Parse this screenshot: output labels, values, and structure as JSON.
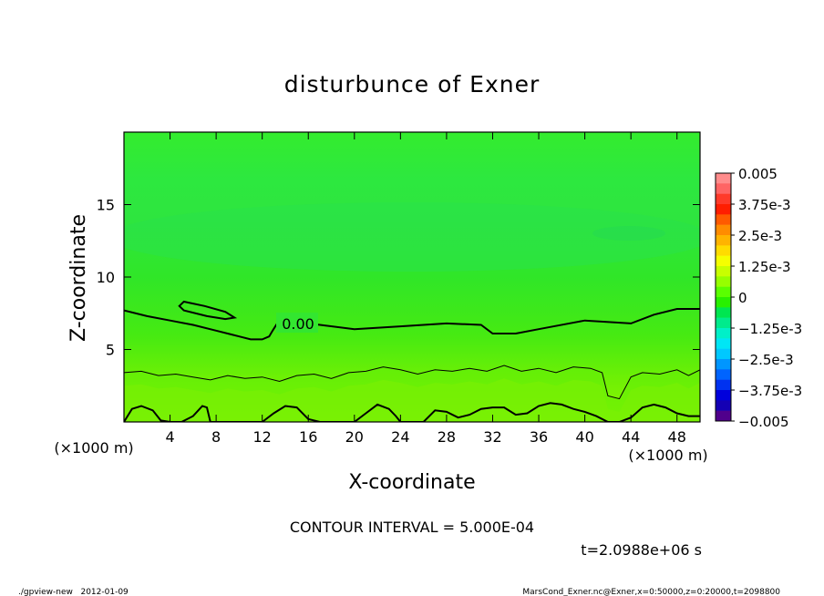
{
  "chart_data": {
    "type": "heatmap",
    "title": "disturbunce of Exner",
    "xlabel": "X-coordinate",
    "ylabel": "Z-coordinate",
    "x_unit": "(×1000 m)",
    "y_unit": "(×1000 m)",
    "xlim": [
      0,
      50
    ],
    "ylim": [
      0,
      20
    ],
    "x_ticks": [
      4,
      8,
      12,
      16,
      20,
      24,
      28,
      32,
      36,
      40,
      44,
      48
    ],
    "y_ticks": [
      5,
      10,
      15
    ],
    "colorbar": {
      "range": [
        -0.005,
        0.005
      ],
      "labels": [
        "0.005",
        "3.75e-3",
        "2.5e-3",
        "1.25e-3",
        "0",
        "−1.25e-3",
        "−2.5e-3",
        "−3.75e-3",
        "−0.005"
      ],
      "label_values": [
        0.005,
        0.00375,
        0.0025,
        0.00125,
        0,
        -0.00125,
        -0.0025,
        -0.00375,
        -0.005
      ],
      "colors": [
        "#ff8c8c",
        "#ff6464",
        "#ff3a2a",
        "#ff1e00",
        "#ff5a00",
        "#ff8c00",
        "#ffb400",
        "#ffdc00",
        "#f5ff00",
        "#c8ff00",
        "#96ff00",
        "#5aff00",
        "#28f000",
        "#00e650",
        "#00eb8c",
        "#00f0c8",
        "#00e6f5",
        "#00c8ff",
        "#0096ff",
        "#0064ff",
        "#0032f0",
        "#0000dc",
        "#1400b4",
        "#50008c"
      ]
    },
    "zero_contour_label": "0.00",
    "zero_contour": {
      "x": [
        0,
        2,
        4,
        6,
        8,
        10,
        11,
        12,
        12.6,
        12.9,
        13.3,
        16,
        20,
        24,
        28,
        31,
        32,
        34,
        36,
        40,
        44,
        46,
        48,
        50
      ],
      "z": [
        7.7,
        7.3,
        7.0,
        6.7,
        6.3,
        5.9,
        5.7,
        5.7,
        5.9,
        6.3,
        6.8,
        6.8,
        6.4,
        6.6,
        6.8,
        6.7,
        6.1,
        6.1,
        6.4,
        7.0,
        6.8,
        7.4,
        7.8,
        7.8
      ]
    },
    "closed_contour": {
      "x": [
        4.8,
        5.2,
        7.0,
        8.8,
        9.6,
        8.8,
        7.2,
        5.2,
        4.8
      ],
      "z": [
        8.0,
        8.3,
        8.0,
        7.6,
        7.2,
        7.1,
        7.3,
        7.7,
        8.0
      ]
    },
    "neg_contour": {
      "x": [
        0,
        1.5,
        3,
        4.5,
        6,
        7.5,
        9,
        10.5,
        12,
        13.5,
        15,
        16.5,
        18,
        19.5,
        21,
        22.5,
        24,
        25.5,
        27,
        28.5,
        30,
        31.5,
        33,
        34.5,
        36,
        37.5,
        39,
        40.5,
        41.5,
        42,
        43,
        44,
        45,
        46.5,
        48,
        49,
        50
      ],
      "z": [
        3.4,
        3.5,
        3.2,
        3.3,
        3.1,
        2.9,
        3.2,
        3.0,
        3.1,
        2.8,
        3.2,
        3.3,
        3.0,
        3.4,
        3.5,
        3.8,
        3.6,
        3.3,
        3.6,
        3.5,
        3.7,
        3.5,
        3.9,
        3.5,
        3.7,
        3.4,
        3.8,
        3.7,
        3.4,
        1.8,
        1.6,
        3.1,
        3.4,
        3.3,
        3.6,
        3.2,
        3.6
      ]
    },
    "bottom_contour": {
      "x": [
        0,
        0.7,
        1.5,
        2.5,
        3.2,
        4,
        5,
        6,
        6.8,
        7.2,
        7.5,
        8,
        9,
        10,
        11,
        12,
        13,
        14,
        15,
        16,
        17,
        18,
        19,
        20,
        21,
        22,
        23,
        23.6,
        24,
        25,
        26,
        27,
        28,
        29,
        30,
        31,
        32,
        33,
        34,
        35,
        36,
        37,
        38,
        39,
        40,
        41,
        42,
        43,
        44,
        45,
        46,
        47,
        48,
        49,
        50
      ],
      "z": [
        0,
        0.9,
        1.1,
        0.8,
        0.1,
        0,
        0,
        0.4,
        1.1,
        1.0,
        0,
        0,
        0,
        0,
        0,
        0,
        0.6,
        1.1,
        1.0,
        0.2,
        0,
        0,
        0,
        0,
        0.6,
        1.2,
        0.9,
        0.4,
        0,
        0,
        0,
        0.8,
        0.7,
        0.3,
        0.5,
        0.9,
        1.0,
        1.0,
        0.5,
        0.6,
        1.1,
        1.3,
        1.2,
        0.9,
        0.7,
        0.4,
        0,
        0,
        0.3,
        1.0,
        1.2,
        1.0,
        0.6,
        0.4,
        0.4
      ]
    }
  },
  "contour_interval_text": "CONTOUR INTERVAL = 5.000E-04",
  "time_text": "t=2.0988e+06 s",
  "footer_left": "./gpview-new   2012-01-09",
  "footer_right": "MarsCond_Exner.nc@Exner,x=0:50000,z=0:20000,t=2098800"
}
